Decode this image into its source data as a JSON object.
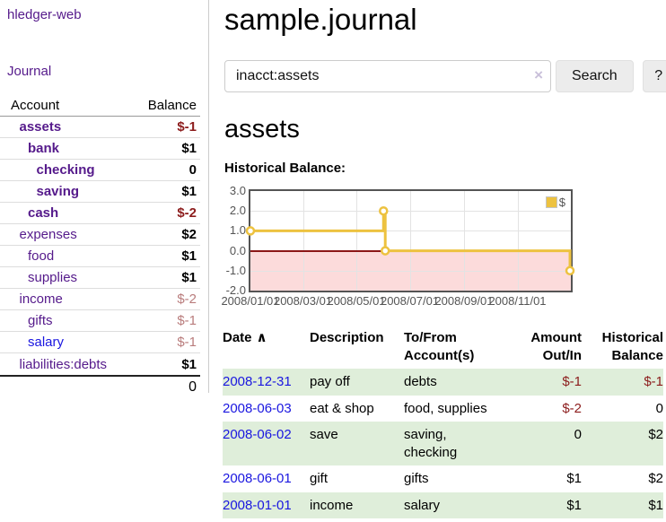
{
  "colors": {
    "link_purple": "#551A8B",
    "link_blue": "#1a16e0",
    "negative_strong": "#8c1c1c",
    "negative_muted": "#b97c7c",
    "row_green": "#dfeeda",
    "series_yellow": "#EDC240",
    "chart_negative_fill": "#fcdbdb",
    "chart_zero_line": "#8c1717"
  },
  "sidebar": {
    "brand": "hledger-web",
    "journal_link": "Journal",
    "accounts": {
      "header_account": "Account",
      "header_balance": "Balance",
      "rows": [
        {
          "name": "assets",
          "balance": "$-1",
          "depth": 1,
          "in_acct": true,
          "name_color": "purple",
          "balance_style": "neg"
        },
        {
          "name": "bank",
          "balance": "$1",
          "depth": 2,
          "in_acct": true,
          "name_color": "purple",
          "balance_style": "pos"
        },
        {
          "name": "checking",
          "balance": "0",
          "depth": 3,
          "in_acct": true,
          "name_color": "purple",
          "balance_style": "pos"
        },
        {
          "name": "saving",
          "balance": "$1",
          "depth": 3,
          "in_acct": true,
          "name_color": "purple",
          "balance_style": "pos"
        },
        {
          "name": "cash",
          "balance": "$-2",
          "depth": 2,
          "in_acct": true,
          "name_color": "purple",
          "balance_style": "neg"
        },
        {
          "name": "expenses",
          "balance": "$2",
          "depth": 1,
          "in_acct": false,
          "name_color": "purple",
          "balance_style": "pos"
        },
        {
          "name": "food",
          "balance": "$1",
          "depth": 2,
          "in_acct": false,
          "name_color": "purple",
          "balance_style": "pos"
        },
        {
          "name": "supplies",
          "balance": "$1",
          "depth": 2,
          "in_acct": false,
          "name_color": "purple",
          "balance_style": "pos"
        },
        {
          "name": "income",
          "balance": "$-2",
          "depth": 1,
          "in_acct": false,
          "name_color": "purple",
          "balance_style": "negmuted"
        },
        {
          "name": "gifts",
          "balance": "$-1",
          "depth": 2,
          "in_acct": false,
          "name_color": "purple",
          "balance_style": "negmuted"
        },
        {
          "name": "salary",
          "balance": "$-1",
          "depth": 2,
          "in_acct": false,
          "name_color": "blue",
          "balance_style": "negmuted"
        },
        {
          "name": "liabilities:debts",
          "balance": "$1",
          "depth": 1,
          "in_acct": false,
          "name_color": "purple",
          "balance_style": "pos"
        }
      ],
      "total": "0"
    }
  },
  "main": {
    "title": "sample.journal",
    "search": {
      "value": "inacct:assets",
      "clear_icon": "×",
      "search_button": "Search",
      "help_button": "?"
    },
    "account_heading": "assets",
    "chart_heading": "Historical Balance:"
  },
  "chart_data": {
    "type": "line",
    "step": true,
    "title": "Historical Balance:",
    "series": [
      {
        "name": "$",
        "color": "#EDC240",
        "points": [
          [
            "2008-01-01",
            1
          ],
          [
            "2008-06-01",
            2
          ],
          [
            "2008-06-03",
            0
          ],
          [
            "2008-12-31",
            -1
          ]
        ]
      }
    ],
    "x_range": [
      "2008-01-01",
      "2009-01-01"
    ],
    "y_range": [
      -2,
      3
    ],
    "y_ticks": [
      {
        "value": 3,
        "label": "3.0"
      },
      {
        "value": 2,
        "label": "2.0"
      },
      {
        "value": 1,
        "label": "1.0"
      },
      {
        "value": 0,
        "label": "0.0"
      },
      {
        "value": -1,
        "label": "-1.0"
      },
      {
        "value": -2,
        "label": "-2.0"
      }
    ],
    "x_ticks": [
      {
        "date": "2008-01-01",
        "label": "2008/01/01"
      },
      {
        "date": "2008-03-01",
        "label": "2008/03/01"
      },
      {
        "date": "2008-05-01",
        "label": "2008/05/01"
      },
      {
        "date": "2008-07-01",
        "label": "2008/07/01"
      },
      {
        "date": "2008-09-01",
        "label": "2008/09/01"
      },
      {
        "date": "2008-11-01",
        "label": "2008/11/01"
      }
    ],
    "grid": true,
    "legend": {
      "label": "$",
      "position": "top-right"
    },
    "negative_region_filled": true
  },
  "table": {
    "sort_icon": "∧",
    "headers": [
      {
        "label": "Date",
        "align": "left"
      },
      {
        "label": "Description",
        "align": "left"
      },
      {
        "label": "To/From\nAccount(s)",
        "align": "left"
      },
      {
        "label": "Amount\nOut/In",
        "align": "right"
      },
      {
        "label": "Historical\nBalance",
        "align": "right"
      }
    ],
    "rows": [
      {
        "date": "2008-12-31",
        "description": "pay off",
        "accounts": "debts",
        "amount": "$-1",
        "amount_neg": true,
        "balance": "$-1",
        "balance_neg": true
      },
      {
        "date": "2008-06-03",
        "description": "eat & shop",
        "accounts": "food, supplies",
        "amount": "$-2",
        "amount_neg": true,
        "balance": "0",
        "balance_neg": false
      },
      {
        "date": "2008-06-02",
        "description": "save",
        "accounts": "saving,\nchecking",
        "amount": "0",
        "amount_neg": false,
        "balance": "$2",
        "balance_neg": false
      },
      {
        "date": "2008-06-01",
        "description": "gift",
        "accounts": "gifts",
        "amount": "$1",
        "amount_neg": false,
        "balance": "$2",
        "balance_neg": false
      },
      {
        "date": "2008-01-01",
        "description": "income",
        "accounts": "salary",
        "amount": "$1",
        "amount_neg": false,
        "balance": "$1",
        "balance_neg": false
      }
    ]
  }
}
